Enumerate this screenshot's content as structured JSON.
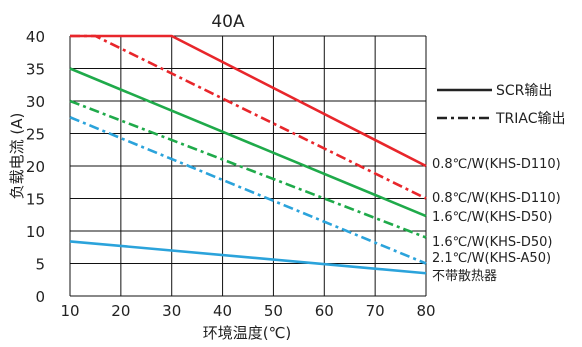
{
  "chart_data": {
    "type": "line",
    "title": "40A",
    "xlabel": "环境温度(℃)",
    "ylabel": "负载电流 (A)",
    "xlim": [
      10,
      80
    ],
    "ylim": [
      0,
      40
    ],
    "x_ticks": [
      10,
      20,
      30,
      40,
      50,
      60,
      70,
      80
    ],
    "y_ticks": [
      0,
      5,
      10,
      15,
      20,
      25,
      30,
      35,
      40
    ],
    "grid": true,
    "legend_position": "right",
    "legend": [
      {
        "label": "SCR输出",
        "style": "solid"
      },
      {
        "label": "TRIAC输出",
        "style": "dashdot"
      }
    ],
    "series": [
      {
        "name": "0.8℃/W(KHS-D110)",
        "style": "solid",
        "color": "#e8262b",
        "points": [
          [
            10,
            40
          ],
          [
            30,
            40
          ],
          [
            80,
            20
          ]
        ]
      },
      {
        "name": "0.8℃/W(KHS-D110)",
        "style": "dashdot",
        "color": "#e8262b",
        "points": [
          [
            10,
            40
          ],
          [
            15,
            40
          ],
          [
            80,
            15
          ]
        ]
      },
      {
        "name": "1.6℃/W(KHS-D50)",
        "style": "solid",
        "color": "#1faa4a",
        "points": [
          [
            10,
            35
          ],
          [
            80,
            12.3
          ]
        ]
      },
      {
        "name": "1.6℃/W(KHS-D50)",
        "style": "dashdot",
        "color": "#1faa4a",
        "points": [
          [
            10,
            30
          ],
          [
            80,
            9
          ]
        ]
      },
      {
        "name": "2.1℃/W(KHS-A50)",
        "style": "dashdot",
        "color": "#2ba3db",
        "points": [
          [
            10,
            27.5
          ],
          [
            80,
            5
          ]
        ]
      },
      {
        "name": "不带散热器",
        "style": "solid",
        "color": "#2ba3db",
        "points": [
          [
            10,
            8.4
          ],
          [
            80,
            3.5
          ]
        ]
      }
    ]
  }
}
